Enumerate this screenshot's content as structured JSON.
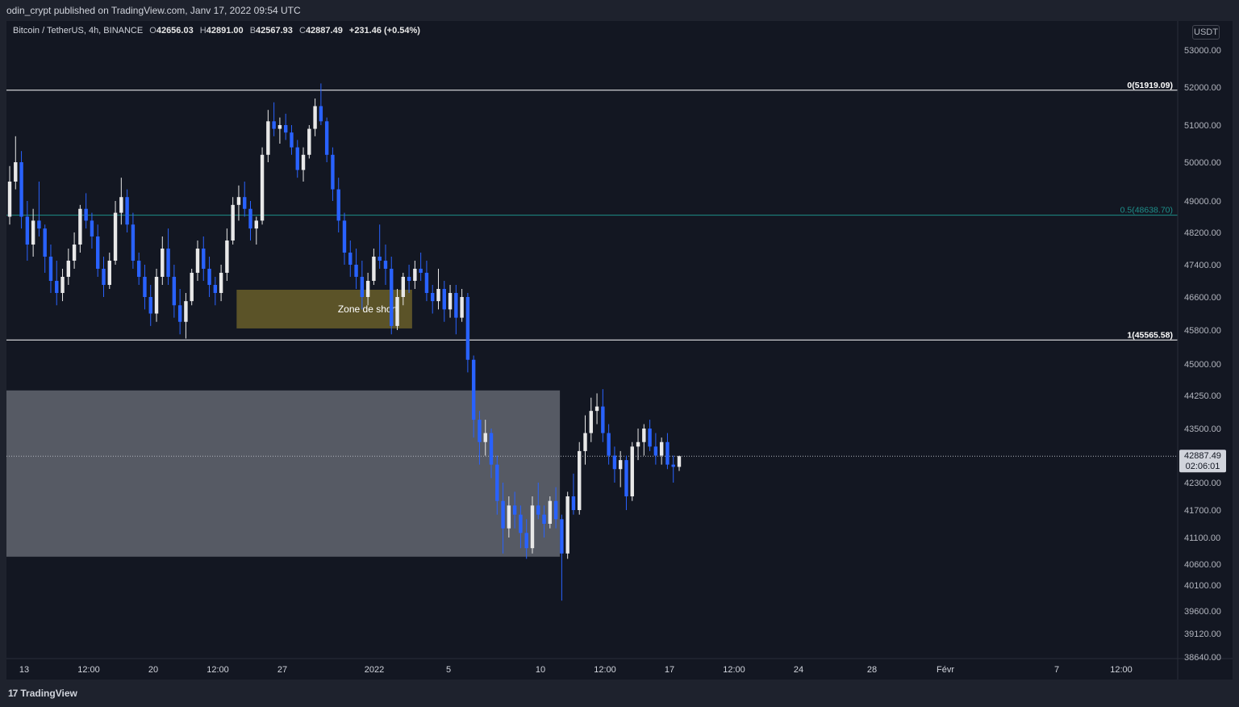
{
  "header": {
    "text": "odin_crypt published on TradingView.com, Janv 17, 2022 09:54 UTC"
  },
  "symbol": {
    "name": "Bitcoin / TetherUS, 4h, BINANCE",
    "open_label": "O",
    "open": "42656.03",
    "high_label": "H",
    "high": "42891.00",
    "low_label": "B",
    "low": "42567.93",
    "close_label": "C",
    "close": "42887.49",
    "change": "+231.46 (+0.54%)"
  },
  "currency": "USDT",
  "footer": {
    "brand": "TradingView",
    "logo_text": "17"
  },
  "colors": {
    "background": "#131722",
    "up_candle": "#e8e8e8",
    "down_candle": "#2962ff",
    "fib_line": "#ffffff",
    "fib_mid_line": "#1e8f8a",
    "short_zone": "#5b5328",
    "support_zone": "#5a5e68"
  },
  "chart_data": {
    "type": "candlestick",
    "y_axis": {
      "ticks": [
        53000,
        52000,
        51000,
        50000,
        49000,
        48200,
        47400,
        46600,
        45800,
        45000,
        44250,
        43500,
        42300,
        41700,
        41100,
        40600,
        40100,
        39600,
        39120,
        38640
      ],
      "tick_labels": [
        "53000.00",
        "52000.00",
        "51000.00",
        "50000.00",
        "49000.00",
        "48200.00",
        "47400.00",
        "46600.00",
        "45800.00",
        "45000.00",
        "44250.00",
        "43500.00",
        "42300.00",
        "41700.00",
        "41100.00",
        "40600.00",
        "40100.00",
        "39600.00",
        "39120.00",
        "38640.00"
      ]
    },
    "x_axis": {
      "tick_labels": [
        "13",
        "12:00",
        "20",
        "12:00",
        "27",
        "2022",
        "5",
        "10",
        "12:00",
        "17",
        "12:00",
        "24",
        "28",
        "Févr",
        "7",
        "12:00"
      ]
    },
    "fib_levels": [
      {
        "level": "0",
        "value": 51919.09,
        "label": "0(51919.09)"
      },
      {
        "level": "0.5",
        "value": 48638.7,
        "label": "0.5(48638.70)"
      },
      {
        "level": "1",
        "value": 45565.58,
        "label": "1(45565.58)"
      }
    ],
    "zones": [
      {
        "name": "Zone de short",
        "top": 46780,
        "bottom": 45840,
        "start": "2022-01-05",
        "end": "2022-01-24"
      },
      {
        "name": "",
        "top": 44370,
        "bottom": 40740,
        "start": "2021-12-13",
        "end": "2022-02-09"
      }
    ],
    "current_price": {
      "value": 42887.49,
      "label": "42887.49",
      "countdown": "02:06:01"
    },
    "candles": [
      [
        48600,
        49900,
        48400,
        49500
      ],
      [
        49500,
        50700,
        49300,
        50000
      ],
      [
        50000,
        50300,
        48300,
        48600
      ],
      [
        48600,
        49000,
        47500,
        47900
      ],
      [
        47900,
        48800,
        47600,
        48500
      ],
      [
        48500,
        49500,
        48100,
        48300
      ],
      [
        48300,
        48400,
        47200,
        47600
      ],
      [
        47600,
        47900,
        46700,
        47000
      ],
      [
        47000,
        47500,
        46400,
        46700
      ],
      [
        46700,
        47300,
        46500,
        47100
      ],
      [
        47100,
        47800,
        46900,
        47500
      ],
      [
        47500,
        48200,
        47300,
        47900
      ],
      [
        47900,
        48900,
        47700,
        48800
      ],
      [
        48800,
        49200,
        48300,
        48500
      ],
      [
        48500,
        48700,
        47800,
        48100
      ],
      [
        48100,
        48400,
        47100,
        47300
      ],
      [
        47300,
        47600,
        46600,
        46900
      ],
      [
        46900,
        47700,
        46800,
        47500
      ],
      [
        47500,
        49000,
        47400,
        48700
      ],
      [
        48700,
        49600,
        48400,
        49100
      ],
      [
        49100,
        49300,
        48200,
        48400
      ],
      [
        48400,
        48700,
        47300,
        47500
      ],
      [
        47500,
        47700,
        46900,
        47100
      ],
      [
        47100,
        47400,
        46300,
        46600
      ],
      [
        46600,
        46900,
        45900,
        46200
      ],
      [
        46200,
        47300,
        46000,
        47100
      ],
      [
        47100,
        48100,
        46900,
        47800
      ],
      [
        47800,
        48300,
        46900,
        47100
      ],
      [
        47100,
        47400,
        46100,
        46400
      ],
      [
        46400,
        46800,
        45700,
        46000
      ],
      [
        46000,
        46700,
        45600,
        46500
      ],
      [
        46500,
        47300,
        46400,
        47200
      ],
      [
        47200,
        48000,
        47000,
        47800
      ],
      [
        47800,
        48100,
        47000,
        47300
      ],
      [
        47300,
        47600,
        46600,
        46900
      ],
      [
        46900,
        47100,
        46400,
        46700
      ],
      [
        46700,
        47400,
        46500,
        47200
      ],
      [
        47200,
        48300,
        47000,
        48000
      ],
      [
        48000,
        49100,
        47900,
        48900
      ],
      [
        48900,
        49400,
        48500,
        49100
      ],
      [
        49100,
        49500,
        48600,
        48800
      ],
      [
        48800,
        49000,
        48000,
        48300
      ],
      [
        48300,
        48600,
        47900,
        48500
      ],
      [
        48500,
        50400,
        48400,
        50200
      ],
      [
        50200,
        51400,
        50000,
        51100
      ],
      [
        51100,
        51600,
        50700,
        50900
      ],
      [
        50900,
        51200,
        50500,
        51000
      ],
      [
        51000,
        51300,
        50600,
        50800
      ],
      [
        50800,
        51000,
        50200,
        50400
      ],
      [
        50400,
        50600,
        49600,
        49800
      ],
      [
        49800,
        50400,
        49500,
        50200
      ],
      [
        50200,
        51000,
        50100,
        50900
      ],
      [
        50900,
        51700,
        50700,
        51500
      ],
      [
        51500,
        52100,
        51000,
        51100
      ],
      [
        51100,
        51200,
        50000,
        50200
      ],
      [
        50200,
        50400,
        49000,
        49300
      ],
      [
        49300,
        49600,
        48200,
        48500
      ],
      [
        48500,
        48700,
        47400,
        47700
      ],
      [
        47700,
        48000,
        47100,
        47400
      ],
      [
        47400,
        47800,
        46800,
        47100
      ],
      [
        47100,
        47500,
        46300,
        46600
      ],
      [
        46600,
        47200,
        46400,
        47000
      ],
      [
        47000,
        47800,
        46900,
        47600
      ],
      [
        47600,
        48400,
        47300,
        47500
      ],
      [
        47500,
        47900,
        46900,
        47300
      ],
      [
        47300,
        47600,
        45700,
        45900
      ],
      [
        45900,
        46800,
        45800,
        46600
      ],
      [
        46600,
        47200,
        46400,
        47100
      ],
      [
        47100,
        47400,
        46700,
        47000
      ],
      [
        47000,
        47500,
        46800,
        47300
      ],
      [
        47300,
        47700,
        47000,
        47200
      ],
      [
        47200,
        47500,
        46500,
        46700
      ],
      [
        46700,
        46900,
        46200,
        46500
      ],
      [
        46500,
        47300,
        46300,
        46800
      ],
      [
        46800,
        47000,
        46000,
        46300
      ],
      [
        46300,
        46900,
        46100,
        46700
      ],
      [
        46700,
        46900,
        45700,
        46100
      ],
      [
        46100,
        46800,
        46000,
        46600
      ],
      [
        46600,
        46700,
        44800,
        45100
      ],
      [
        45100,
        45200,
        43300,
        43700
      ],
      [
        43700,
        43900,
        42700,
        43200
      ],
      [
        43200,
        43700,
        42900,
        43400
      ],
      [
        43400,
        43500,
        42400,
        42700
      ],
      [
        42700,
        42900,
        41600,
        41900
      ],
      [
        41900,
        42300,
        40800,
        41300
      ],
      [
        41300,
        42000,
        41100,
        41800
      ],
      [
        41800,
        42100,
        41300,
        41600
      ],
      [
        41600,
        41800,
        40900,
        41200
      ],
      [
        41200,
        41500,
        40700,
        40900
      ],
      [
        40900,
        42000,
        40800,
        41800
      ],
      [
        41800,
        42300,
        41500,
        41600
      ],
      [
        41600,
        41800,
        41100,
        41400
      ],
      [
        41400,
        42000,
        41300,
        41900
      ],
      [
        41900,
        42200,
        41300,
        41500
      ],
      [
        41500,
        41600,
        39800,
        40800
      ],
      [
        40800,
        42100,
        40700,
        42000
      ],
      [
        42000,
        42500,
        41600,
        41700
      ],
      [
        41700,
        43200,
        41600,
        43000
      ],
      [
        43000,
        43800,
        42700,
        43400
      ],
      [
        43400,
        44200,
        43200,
        43900
      ],
      [
        43900,
        44300,
        43600,
        44000
      ],
      [
        44000,
        44400,
        43200,
        43400
      ],
      [
        43400,
        43600,
        42700,
        42900
      ],
      [
        42900,
        43100,
        42300,
        42600
      ],
      [
        42600,
        43000,
        42200,
        42800
      ],
      [
        42800,
        42900,
        41700,
        42000
      ],
      [
        42000,
        43200,
        41900,
        43100
      ],
      [
        43100,
        43500,
        42800,
        43200
      ],
      [
        43200,
        43600,
        42900,
        43500
      ],
      [
        43500,
        43700,
        43000,
        43100
      ],
      [
        43100,
        43400,
        42700,
        42900
      ],
      [
        42900,
        43300,
        42700,
        43200
      ],
      [
        43200,
        43400,
        42600,
        42700
      ],
      [
        42700,
        42900,
        42300,
        42650
      ],
      [
        42650,
        42900,
        42560,
        42887
      ]
    ]
  }
}
